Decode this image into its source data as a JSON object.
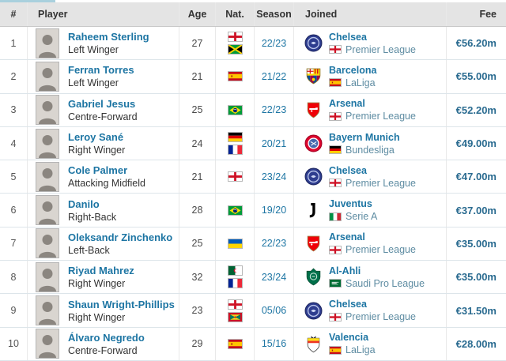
{
  "theme": {
    "link_blue": "#1d75a3",
    "league_blue": "#5e8ca2",
    "fee_blue": "#2a6b90",
    "header_bg": "#e4e4e4",
    "tab_indicator": "#a9d0dd"
  },
  "table": {
    "columns": {
      "rank": "#",
      "player": "Player",
      "age": "Age",
      "nat": "Nat.",
      "season": "Season",
      "joined": "Joined",
      "fee": "Fee"
    }
  },
  "rows": [
    {
      "rank": "1",
      "name": "Raheem Sterling",
      "position": "Left Winger",
      "age": "27",
      "nationalities": [
        "England",
        "Jamaica"
      ],
      "season": "22/23",
      "club": "Chelsea",
      "club_badge": "chelsea",
      "league": "Premier League",
      "league_flag": "England",
      "fee": "€56.20m"
    },
    {
      "rank": "2",
      "name": "Ferran Torres",
      "position": "Left Winger",
      "age": "21",
      "nationalities": [
        "Spain"
      ],
      "season": "21/22",
      "club": "Barcelona",
      "club_badge": "barcelona",
      "league": "LaLiga",
      "league_flag": "Spain",
      "fee": "€55.00m"
    },
    {
      "rank": "3",
      "name": "Gabriel Jesus",
      "position": "Centre-Forward",
      "age": "25",
      "nationalities": [
        "Brazil"
      ],
      "season": "22/23",
      "club": "Arsenal",
      "club_badge": "arsenal",
      "league": "Premier League",
      "league_flag": "England",
      "fee": "€52.20m"
    },
    {
      "rank": "4",
      "name": "Leroy Sané",
      "position": "Right Winger",
      "age": "24",
      "nationalities": [
        "Germany",
        "France"
      ],
      "season": "20/21",
      "club": "Bayern Munich",
      "club_badge": "bayern",
      "league": "Bundesliga",
      "league_flag": "Germany",
      "fee": "€49.00m"
    },
    {
      "rank": "5",
      "name": "Cole Palmer",
      "position": "Attacking Midfield",
      "age": "21",
      "nationalities": [
        "England"
      ],
      "season": "23/24",
      "club": "Chelsea",
      "club_badge": "chelsea",
      "league": "Premier League",
      "league_flag": "England",
      "fee": "€47.00m"
    },
    {
      "rank": "6",
      "name": "Danilo",
      "position": "Right-Back",
      "age": "28",
      "nationalities": [
        "Brazil"
      ],
      "season": "19/20",
      "club": "Juventus",
      "club_badge": "juventus",
      "league": "Serie A",
      "league_flag": "Italy",
      "fee": "€37.00m"
    },
    {
      "rank": "7",
      "name": "Oleksandr Zinchenko",
      "position": "Left-Back",
      "age": "25",
      "nationalities": [
        "Ukraine"
      ],
      "season": "22/23",
      "club": "Arsenal",
      "club_badge": "arsenal",
      "league": "Premier League",
      "league_flag": "England",
      "fee": "€35.00m"
    },
    {
      "rank": "8",
      "name": "Riyad Mahrez",
      "position": "Right Winger",
      "age": "32",
      "nationalities": [
        "Algeria",
        "France"
      ],
      "season": "23/24",
      "club": "Al-Ahli",
      "club_badge": "alahli",
      "league": "Saudi Pro League",
      "league_flag": "SaudiArabia",
      "fee": "€35.00m"
    },
    {
      "rank": "9",
      "name": "Shaun Wright-Phillips",
      "position": "Right Winger",
      "age": "23",
      "nationalities": [
        "England",
        "Grenada"
      ],
      "season": "05/06",
      "club": "Chelsea",
      "club_badge": "chelsea",
      "league": "Premier League",
      "league_flag": "England",
      "fee": "€31.50m"
    },
    {
      "rank": "10",
      "name": "Álvaro Negredo",
      "position": "Centre-Forward",
      "age": "29",
      "nationalities": [
        "Spain"
      ],
      "season": "15/16",
      "club": "Valencia",
      "club_badge": "valencia",
      "league": "LaLiga",
      "league_flag": "Spain",
      "fee": "€28.00m"
    }
  ]
}
